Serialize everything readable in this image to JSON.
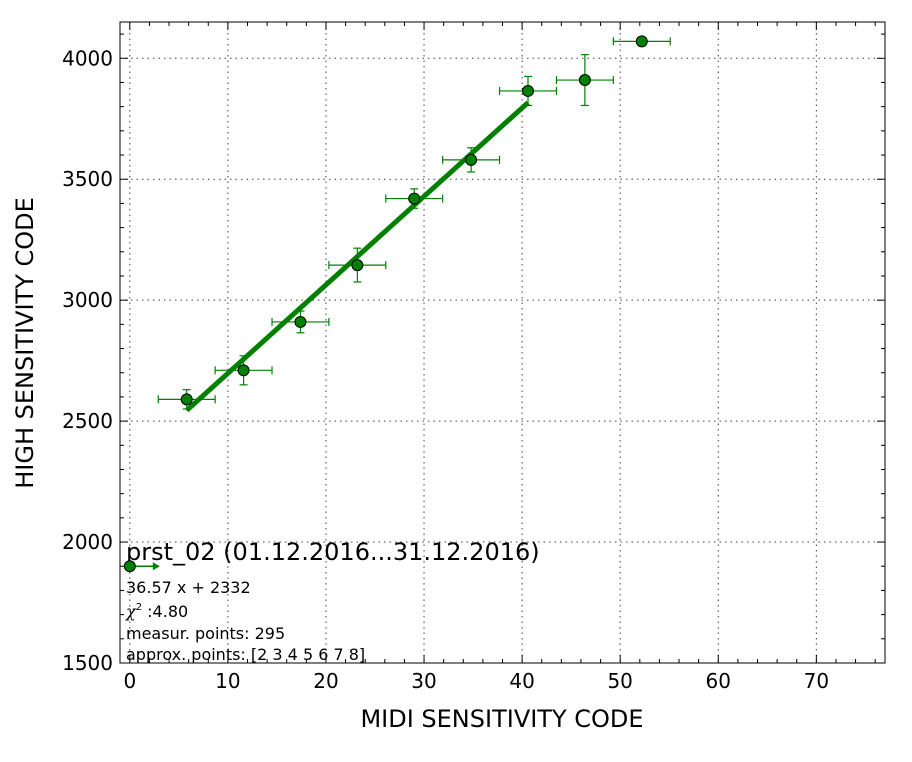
{
  "chart_data": {
    "type": "scatter",
    "xlabel": "MIDI SENSITIVITY CODE",
    "ylabel": "HIGH SENSITIVITY CODE",
    "xlim": [
      -1,
      77
    ],
    "ylim": [
      1500,
      4150
    ],
    "xticks": [
      0,
      10,
      20,
      30,
      40,
      50,
      60,
      70
    ],
    "yticks": [
      1500,
      2000,
      2500,
      3000,
      3500,
      4000
    ],
    "grid": true,
    "colors": {
      "series": "#008000",
      "marker_edge": "#000000"
    },
    "points": [
      {
        "x": 5.8,
        "y": 2590,
        "xerr": 2.9,
        "yerr": 40
      },
      {
        "x": 11.6,
        "y": 2710,
        "xerr": 2.9,
        "yerr": 60
      },
      {
        "x": 17.4,
        "y": 2910,
        "xerr": 2.9,
        "yerr": 45
      },
      {
        "x": 23.2,
        "y": 3145,
        "xerr": 2.9,
        "yerr": 70
      },
      {
        "x": 29.0,
        "y": 3420,
        "xerr": 2.9,
        "yerr": 40
      },
      {
        "x": 34.8,
        "y": 3580,
        "xerr": 2.9,
        "yerr": 50
      },
      {
        "x": 40.6,
        "y": 3865,
        "xerr": 2.9,
        "yerr": 60
      },
      {
        "x": 46.4,
        "y": 3910,
        "xerr": 2.9,
        "yerr": 105
      },
      {
        "x": 52.2,
        "y": 4070,
        "xerr": 2.9,
        "yerr": 0
      }
    ],
    "fit": {
      "slope": 36.57,
      "intercept": 2332,
      "x_range": [
        5.8,
        40.6
      ]
    },
    "annotation": {
      "title": "prst_02 (01.12.2016...31.12.2016)",
      "equation": "36.57 x + 2332",
      "chi_symbol": "χ",
      "chi_sup": "2",
      "chi_value": " :4.80",
      "measur_points": "measur. points: 295",
      "approx_points": "approx. points: [2 3 4 5 6 7 8]",
      "legend_marker_point": {
        "x": 0,
        "y": 1900
      }
    }
  }
}
